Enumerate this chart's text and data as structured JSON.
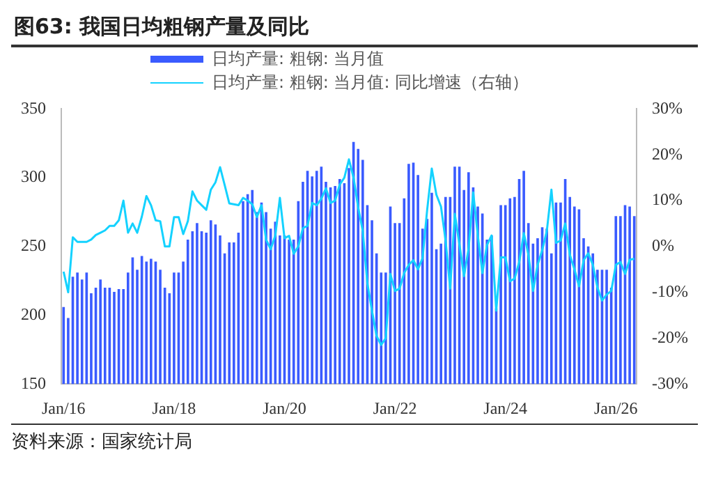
{
  "chart_data": {
    "type": "bar",
    "title": "图63:  我国日均粗钢产量及同比",
    "annotations": [
      "资料来源：国家统计局"
    ],
    "legend": "top",
    "categories": [
      "Jan/16",
      null,
      null,
      null,
      null,
      null,
      null,
      null,
      null,
      null,
      null,
      null,
      null,
      null,
      null,
      null,
      null,
      null,
      null,
      null,
      null,
      null,
      null,
      null,
      "Jan/18",
      null,
      null,
      null,
      null,
      null,
      null,
      null,
      null,
      null,
      null,
      null,
      null,
      null,
      null,
      null,
      null,
      null,
      null,
      null,
      null,
      null,
      null,
      null,
      "Jan/20",
      null,
      null,
      null,
      null,
      null,
      null,
      null,
      null,
      null,
      null,
      null,
      null,
      null,
      null,
      null,
      null,
      null,
      null,
      null,
      null,
      null,
      null,
      null,
      "Jan/22",
      null,
      null,
      null,
      null,
      null,
      null,
      null,
      null,
      null,
      null,
      null,
      null,
      null,
      null,
      null,
      null,
      null,
      null,
      null,
      null,
      null,
      null,
      null,
      "Jan/24",
      null,
      null,
      null,
      null,
      null,
      null,
      null,
      null,
      null,
      null,
      null,
      null,
      null,
      null,
      null,
      null,
      null,
      null,
      null,
      null,
      null,
      null,
      null,
      "Jan/26",
      null,
      null,
      null,
      null
    ],
    "series": [
      {
        "name": "日均产量: 粗钢: 当月值",
        "color": "#3a5bff",
        "values": [
          206,
          198,
          228,
          231,
          226,
          231,
          216,
          220,
          226,
          220,
          220,
          217,
          219,
          219,
          231,
          242,
          233,
          243,
          239,
          241,
          239,
          233,
          220,
          216,
          231,
          231,
          239,
          255,
          261,
          267,
          261,
          260,
          269,
          266,
          258,
          245,
          253,
          253,
          260,
          283,
          288,
          291,
          275,
          282,
          275,
          263,
          268,
          258,
          258,
          255,
          255,
          283,
          297,
          305,
          301,
          305,
          308,
          297,
          293,
          294,
          299,
          296,
          307,
          326,
          321,
          313,
          280,
          269,
          245,
          231,
          231,
          279,
          267,
          267,
          285,
          310,
          311,
          302,
          263,
          270,
          289,
          248,
          252,
          286,
          286,
          308,
          308,
          291,
          304,
          293,
          279,
          274,
          255,
          258,
          205,
          280,
          280,
          285,
          286,
          299,
          305,
          267,
          252,
          256,
          264,
          263,
          245,
          282,
          282,
          299,
          286,
          279,
          277,
          256,
          250,
          245,
          233,
          233,
          233,
          220,
          272,
          272,
          280,
          279,
          272
        ]
      },
      {
        "name": "日均产量: 粗钢: 当月值: 同比增速（右轴）",
        "type": "line",
        "axis": "y2",
        "color": "#14d2ff",
        "values": [
          -5.5,
          -10,
          2,
          1,
          1,
          1,
          1.5,
          2.5,
          3,
          3.5,
          4.5,
          4.5,
          5.7,
          10,
          3,
          5,
          3,
          6.5,
          11,
          9,
          5.7,
          5.5,
          0,
          0,
          6.4,
          6.4,
          2.7,
          5.5,
          12,
          10,
          9,
          8,
          12.4,
          14,
          17.3,
          13.4,
          9.4,
          9.2,
          9,
          10.6,
          10,
          9.2,
          6.4,
          9,
          1.5,
          -0.6,
          2.4,
          10.6,
          1.8,
          2.3,
          -1.6,
          0,
          4,
          4.5,
          9.5,
          9,
          10.4,
          12.7,
          9.5,
          10,
          13.5,
          15,
          19,
          15,
          8.6,
          3.4,
          -8,
          -14,
          -19.5,
          -21.5,
          -20,
          -6,
          -9.7,
          -9.2,
          -5.8,
          -4,
          -3,
          -5,
          -2.5,
          8,
          17,
          11.3,
          8.7,
          1.3,
          -9.2,
          7.1,
          0.5,
          -6.5,
          -0.5,
          11.8,
          2.4,
          -5.8,
          0.3,
          2.4,
          -14,
          -2.4,
          -2.4,
          -7.6,
          -7,
          -3.4,
          2.9,
          -1.8,
          -9.7,
          -4,
          -0.8,
          3.4,
          12.4,
          0.8,
          1.3,
          5,
          -1.8,
          -5,
          -8.7,
          -3,
          -1.5,
          -4,
          -9,
          -11.8,
          -10.5,
          -9.7,
          -4,
          -3.4,
          -6,
          -2.9,
          -2.7
        ]
      }
    ],
    "ylim": [
      150,
      350
    ],
    "yticks": [
      150,
      200,
      250,
      300,
      350
    ],
    "y2lim": [
      -30,
      30
    ],
    "y2ticks": [
      {
        "value": -30,
        "label": "-30%"
      },
      {
        "value": -20,
        "label": "-20%"
      },
      {
        "value": -10,
        "label": "-10%"
      },
      {
        "value": 0,
        "label": "0%"
      },
      {
        "value": 10,
        "label": "10%"
      },
      {
        "value": 20,
        "label": "20%"
      },
      {
        "value": 30,
        "label": "30%"
      }
    ]
  }
}
